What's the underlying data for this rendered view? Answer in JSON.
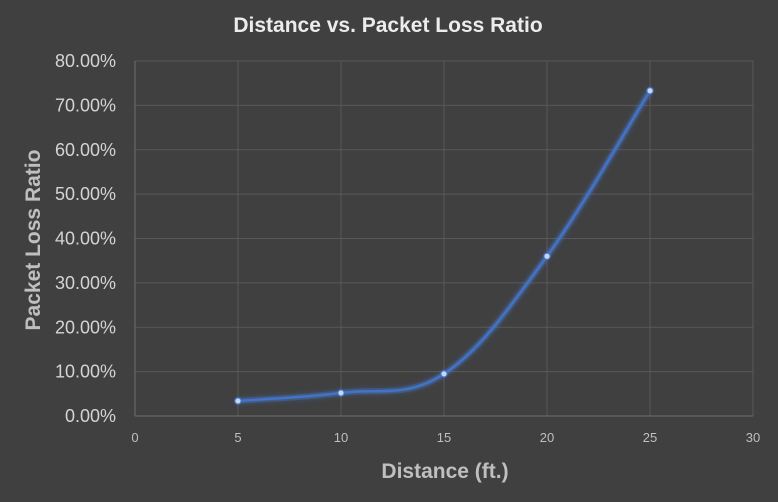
{
  "chart_data": {
    "type": "line",
    "title": "Distance vs. Packet Loss Ratio",
    "xlabel": "Distance (ft.)",
    "ylabel": "Packet Loss Ratio",
    "xlim": [
      0,
      30
    ],
    "ylim": [
      0,
      0.8
    ],
    "x_ticks": [
      0,
      5,
      10,
      15,
      20,
      25,
      30
    ],
    "x_tick_labels": [
      "0",
      "5",
      "10",
      "15",
      "20",
      "25",
      "30"
    ],
    "y_ticks": [
      0,
      0.1,
      0.2,
      0.3,
      0.4,
      0.5,
      0.6,
      0.7,
      0.8
    ],
    "y_tick_labels": [
      "0.00%",
      "10.00%",
      "20.00%",
      "30.00%",
      "40.00%",
      "50.00%",
      "60.00%",
      "70.00%",
      "80.00%"
    ],
    "grid": true,
    "legend": "none",
    "series": [
      {
        "x": [
          5,
          10,
          15,
          20,
          25
        ],
        "values": [
          0.034,
          0.052,
          0.095,
          0.36,
          0.733
        ],
        "color": "#4472c4"
      }
    ]
  }
}
